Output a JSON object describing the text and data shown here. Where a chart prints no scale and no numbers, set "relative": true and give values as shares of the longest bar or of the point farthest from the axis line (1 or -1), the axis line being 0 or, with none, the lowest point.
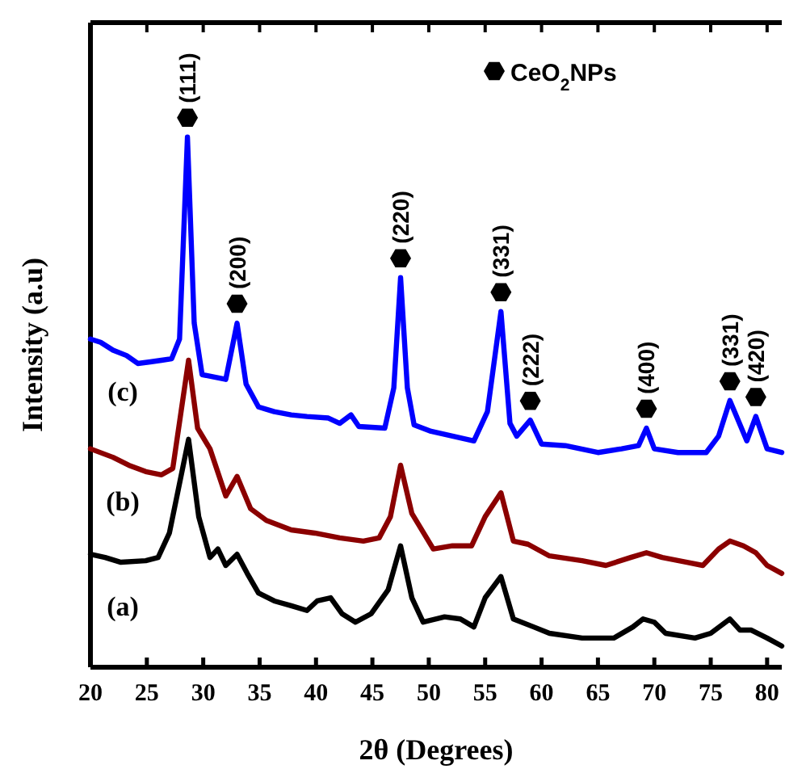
{
  "chart_data": {
    "type": "line",
    "xlabel": "2θ (Degrees)",
    "ylabel": "Intensity (a.u)",
    "relative": true,
    "xlim": [
      20,
      81.3
    ],
    "xticks": [
      20,
      25,
      30,
      35,
      40,
      45,
      50,
      55,
      60,
      65,
      70,
      75,
      80
    ],
    "grid": false,
    "line_style": "solid",
    "marker": "none",
    "annotations": [
      "CeO$_{2}$NPs",
      {
        "text": "(111)",
        "x": 28.6,
        "y": 1.0
      },
      {
        "text": "(200)",
        "x": 33.0,
        "y": 0.649
      },
      {
        "text": "(220)",
        "x": 47.5,
        "y": 0.735
      },
      {
        "text": "(331)",
        "x": 56.4,
        "y": 0.671
      },
      {
        "text": "(222)",
        "x": 59.0,
        "y": 0.466
      },
      {
        "text": "(400)",
        "x": 69.3,
        "y": 0.451
      },
      {
        "text": "(331)",
        "x": 76.7,
        "y": 0.503
      },
      {
        "text": "(420)",
        "x": 79.0,
        "y": 0.473
      }
    ],
    "series": [
      {
        "name": "(c)",
        "color": "#0000ff",
        "x": [
          20.0,
          20.9,
          22.0,
          23.2,
          24.2,
          25.3,
          26.3,
          27.2,
          27.9,
          28.6,
          29.2,
          29.9,
          32.0,
          33.0,
          33.8,
          34.9,
          36.3,
          37.8,
          39.2,
          41.1,
          42.1,
          43.1,
          43.8,
          46.1,
          46.9,
          47.5,
          48.1,
          48.7,
          50.2,
          52.1,
          54.0,
          55.2,
          56.4,
          57.2,
          57.8,
          59.0,
          60.0,
          62.1,
          65.0,
          67.1,
          68.6,
          69.3,
          70.0,
          72.1,
          74.6,
          75.7,
          76.7,
          78.2,
          79.0,
          80.0,
          81.3
        ],
        "values": [
          0.619,
          0.613,
          0.598,
          0.588,
          0.573,
          0.576,
          0.579,
          0.582,
          0.619,
          1.0,
          0.649,
          0.552,
          0.543,
          0.649,
          0.534,
          0.491,
          0.482,
          0.476,
          0.473,
          0.47,
          0.46,
          0.476,
          0.454,
          0.451,
          0.527,
          0.735,
          0.527,
          0.457,
          0.445,
          0.436,
          0.427,
          0.482,
          0.671,
          0.46,
          0.436,
          0.466,
          0.421,
          0.418,
          0.405,
          0.412,
          0.418,
          0.451,
          0.412,
          0.405,
          0.405,
          0.436,
          0.503,
          0.427,
          0.473,
          0.412,
          0.405
        ]
      },
      {
        "name": "(b)",
        "color": "#8b0000",
        "x": [
          20.0,
          22.0,
          23.4,
          24.9,
          26.3,
          27.3,
          28.7,
          29.5,
          30.6,
          32.0,
          33.0,
          34.2,
          35.6,
          37.8,
          39.9,
          42.1,
          44.2,
          45.6,
          46.6,
          47.5,
          48.5,
          50.4,
          52.1,
          53.8,
          55.0,
          56.4,
          57.5,
          58.8,
          60.7,
          63.6,
          65.7,
          67.9,
          69.3,
          70.7,
          72.9,
          74.3,
          75.7,
          76.7,
          77.9,
          79.0,
          80.0,
          81.3
        ],
        "values": [
          0.412,
          0.396,
          0.381,
          0.369,
          0.363,
          0.375,
          0.579,
          0.451,
          0.412,
          0.323,
          0.36,
          0.299,
          0.277,
          0.259,
          0.253,
          0.244,
          0.238,
          0.244,
          0.284,
          0.381,
          0.29,
          0.223,
          0.229,
          0.229,
          0.284,
          0.329,
          0.238,
          0.232,
          0.21,
          0.201,
          0.192,
          0.207,
          0.216,
          0.207,
          0.198,
          0.192,
          0.223,
          0.238,
          0.229,
          0.216,
          0.192,
          0.177
        ]
      },
      {
        "name": "(a)",
        "color": "#000000",
        "x": [
          20.0,
          21.3,
          22.7,
          24.9,
          26.0,
          27.0,
          28.7,
          29.6,
          30.6,
          31.3,
          32.0,
          33.0,
          33.9,
          34.9,
          36.3,
          37.8,
          39.2,
          40.1,
          41.3,
          42.3,
          43.5,
          44.9,
          46.4,
          47.5,
          48.5,
          49.5,
          51.4,
          52.8,
          54.0,
          55.0,
          56.4,
          57.5,
          59.3,
          60.7,
          63.6,
          66.4,
          68.1,
          69.0,
          70.0,
          71.0,
          73.6,
          75.0,
          76.7,
          77.6,
          78.6,
          80.0,
          81.3
        ],
        "values": [
          0.213,
          0.207,
          0.198,
          0.201,
          0.207,
          0.253,
          0.43,
          0.284,
          0.207,
          0.223,
          0.192,
          0.213,
          0.177,
          0.14,
          0.125,
          0.116,
          0.107,
          0.125,
          0.131,
          0.101,
          0.085,
          0.101,
          0.146,
          0.229,
          0.131,
          0.085,
          0.095,
          0.091,
          0.076,
          0.131,
          0.171,
          0.091,
          0.076,
          0.064,
          0.055,
          0.055,
          0.076,
          0.091,
          0.085,
          0.064,
          0.055,
          0.064,
          0.091,
          0.07,
          0.07,
          0.055,
          0.04
        ]
      }
    ]
  }
}
